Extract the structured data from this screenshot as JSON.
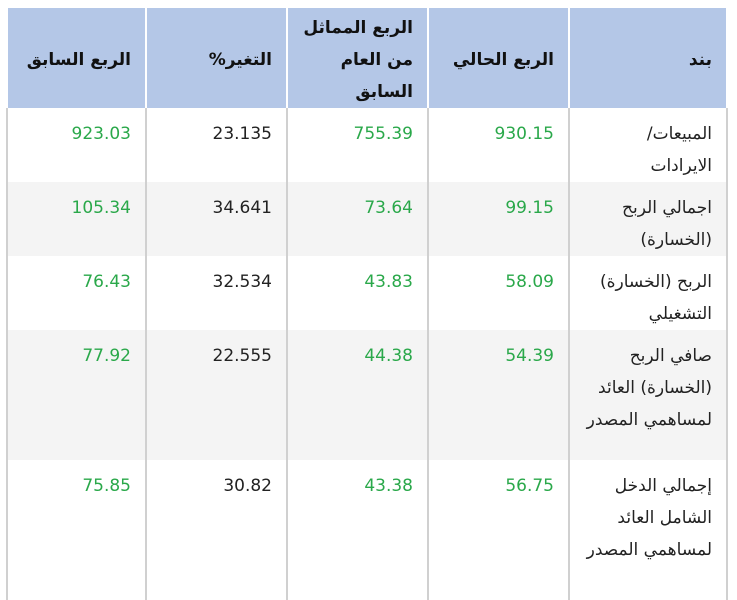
{
  "table": {
    "headers": [
      "بند",
      "الربع الحالي",
      "الربع المماثل من العام السابق",
      "التغير%",
      "الربع السابق"
    ],
    "rows": [
      [
        "المبيعات/ الايرادات",
        930.15,
        755.39,
        23.135,
        923.03
      ],
      [
        "اجمالي الربح (الخسارة)",
        99.15,
        73.64,
        34.641,
        105.34
      ],
      [
        "الربح (الخسارة) التشغيلي",
        58.09,
        43.83,
        32.534,
        76.43
      ],
      [
        "صافي الربح (الخسارة) العائد لمساهمي المصدر",
        54.39,
        44.38,
        22.555,
        77.92
      ],
      [
        "إجمالي الدخل الشامل العائد لمساهمي المصدر",
        56.75,
        43.38,
        30.82,
        75.85
      ]
    ]
  }
}
